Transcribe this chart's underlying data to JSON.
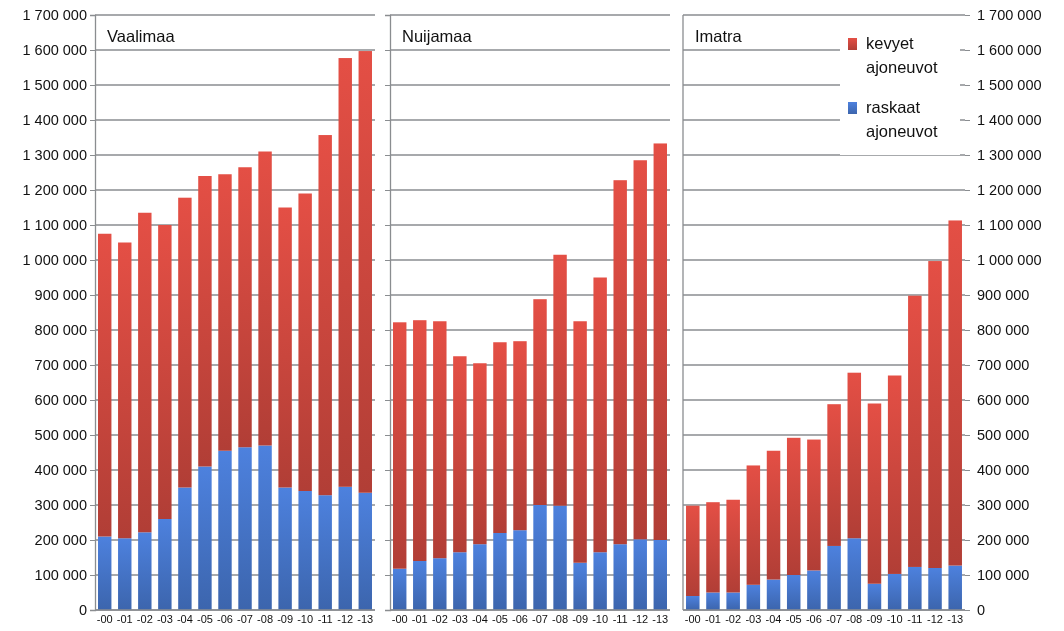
{
  "chart_data": [
    {
      "type": "bar",
      "title": "Vaalimaa",
      "stacked": true,
      "grid": "y",
      "legend": false,
      "categories": [
        "-00",
        "-01",
        "-02",
        "-03",
        "-04",
        "-05",
        "-06",
        "-07",
        "-08",
        "-09",
        "-10",
        "-11",
        "-12",
        "-13"
      ],
      "ylim": [
        0,
        1700000
      ],
      "yticks": [
        0,
        {
          "value": 100000,
          "label": "100 000"
        },
        {
          "value": 200000,
          "label": "200 000"
        },
        {
          "value": 300000,
          "label": "300 000"
        },
        {
          "value": 400000,
          "label": "400 000"
        },
        {
          "value": 500000,
          "label": "500 000"
        },
        {
          "value": 600000,
          "label": "600 000"
        },
        {
          "value": 700000,
          "label": "700 000"
        },
        {
          "value": 800000,
          "label": "800 000"
        },
        {
          "value": 900000,
          "label": "900 000"
        },
        {
          "value": 1000000,
          "label": "1 000 000"
        },
        {
          "value": 1100000,
          "label": "1 100 000"
        },
        {
          "value": 1200000,
          "label": "1 200 000"
        },
        {
          "value": 1300000,
          "label": "1 300 000"
        },
        {
          "value": 1400000,
          "label": "1 400 000"
        },
        {
          "value": 1500000,
          "label": "1 500 000"
        },
        {
          "value": 1600000,
          "label": "1 600 000"
        },
        {
          "value": 1700000,
          "label": "1 700 000"
        }
      ],
      "series": [
        {
          "color": "#4472c4",
          "values": [
            210000,
            205000,
            222000,
            260000,
            350000,
            410000,
            455000,
            465000,
            470000,
            350000,
            340000,
            328000,
            352000,
            335000
          ]
        },
        {
          "color": "#c9463d",
          "values": [
            865000,
            845000,
            913000,
            840000,
            828000,
            830000,
            790000,
            800000,
            840000,
            800000,
            850000,
            1029000,
            1225000,
            1262000
          ]
        }
      ]
    },
    {
      "type": "bar",
      "title": "Nuijamaa",
      "stacked": true,
      "grid": "y",
      "legend": false,
      "tick_labels": "x",
      "categories": [
        "-00",
        "-01",
        "-02",
        "-03",
        "-04",
        "-05",
        "-06",
        "-07",
        "-08",
        "-09",
        "-10",
        "-11",
        "-12",
        "-13"
      ],
      "ylim": [
        0,
        1700000
      ],
      "yticks": [
        0,
        100000,
        200000,
        300000,
        400000,
        500000,
        600000,
        700000,
        800000,
        900000,
        1000000,
        1100000,
        1200000,
        1300000,
        1400000,
        1500000,
        1600000,
        1700000
      ],
      "series": [
        {
          "color": "#4472c4",
          "values": [
            118000,
            140000,
            148000,
            165000,
            188000,
            220000,
            228000,
            300000,
            298000,
            135000,
            165000,
            188000,
            202000,
            200000
          ]
        },
        {
          "color": "#c9463d",
          "values": [
            704000,
            688000,
            677000,
            560000,
            517000,
            545000,
            540000,
            588000,
            717000,
            690000,
            785000,
            1040000,
            1083000,
            1133000
          ]
        }
      ]
    },
    {
      "type": "bar",
      "title": "Imatra",
      "stacked": true,
      "grid": "y",
      "legend": "top right",
      "categories": [
        "-00",
        "-01",
        "-02",
        "-03",
        "-04",
        "-05",
        "-06",
        "-07",
        "-08",
        "-09",
        "-10",
        "-11",
        "-12",
        "-13"
      ],
      "y2lim": [
        0,
        1700000
      ],
      "y2ticks": [
        0,
        {
          "value": 100000,
          "label": "100 000"
        },
        {
          "value": 200000,
          "label": "200 000"
        },
        {
          "value": 300000,
          "label": "300 000"
        },
        {
          "value": 400000,
          "label": "400 000"
        },
        {
          "value": 500000,
          "label": "500 000"
        },
        {
          "value": 600000,
          "label": "600 000"
        },
        {
          "value": 700000,
          "label": "700 000"
        },
        {
          "value": 800000,
          "label": "800 000"
        },
        {
          "value": 900000,
          "label": "900 000"
        },
        {
          "value": 1000000,
          "label": "1 000 000"
        },
        {
          "value": 1100000,
          "label": "1 100 000"
        },
        {
          "value": 1200000,
          "label": "1 200 000"
        },
        {
          "value": 1300000,
          "label": "1 300 000"
        },
        {
          "value": 1400000,
          "label": "1 400 000"
        },
        {
          "value": 1500000,
          "label": "1 500 000"
        },
        {
          "value": 1600000,
          "label": "1 600 000"
        },
        {
          "value": 1700000,
          "label": "1 700 000"
        }
      ],
      "series": [
        {
          "name": "raskaat ajoneuvot",
          "axis": "y2",
          "color": "#4472c4",
          "values": [
            40000,
            50000,
            50000,
            72000,
            87000,
            100000,
            113000,
            183000,
            205000,
            75000,
            103000,
            123000,
            120000,
            127000
          ]
        },
        {
          "name": "kevyet ajoneuvot",
          "axis": "y2",
          "color": "#c9463d",
          "values": [
            258000,
            258000,
            265000,
            341000,
            368000,
            392000,
            374000,
            405000,
            473000,
            515000,
            567000,
            775000,
            877000,
            986000
          ]
        }
      ]
    }
  ]
}
